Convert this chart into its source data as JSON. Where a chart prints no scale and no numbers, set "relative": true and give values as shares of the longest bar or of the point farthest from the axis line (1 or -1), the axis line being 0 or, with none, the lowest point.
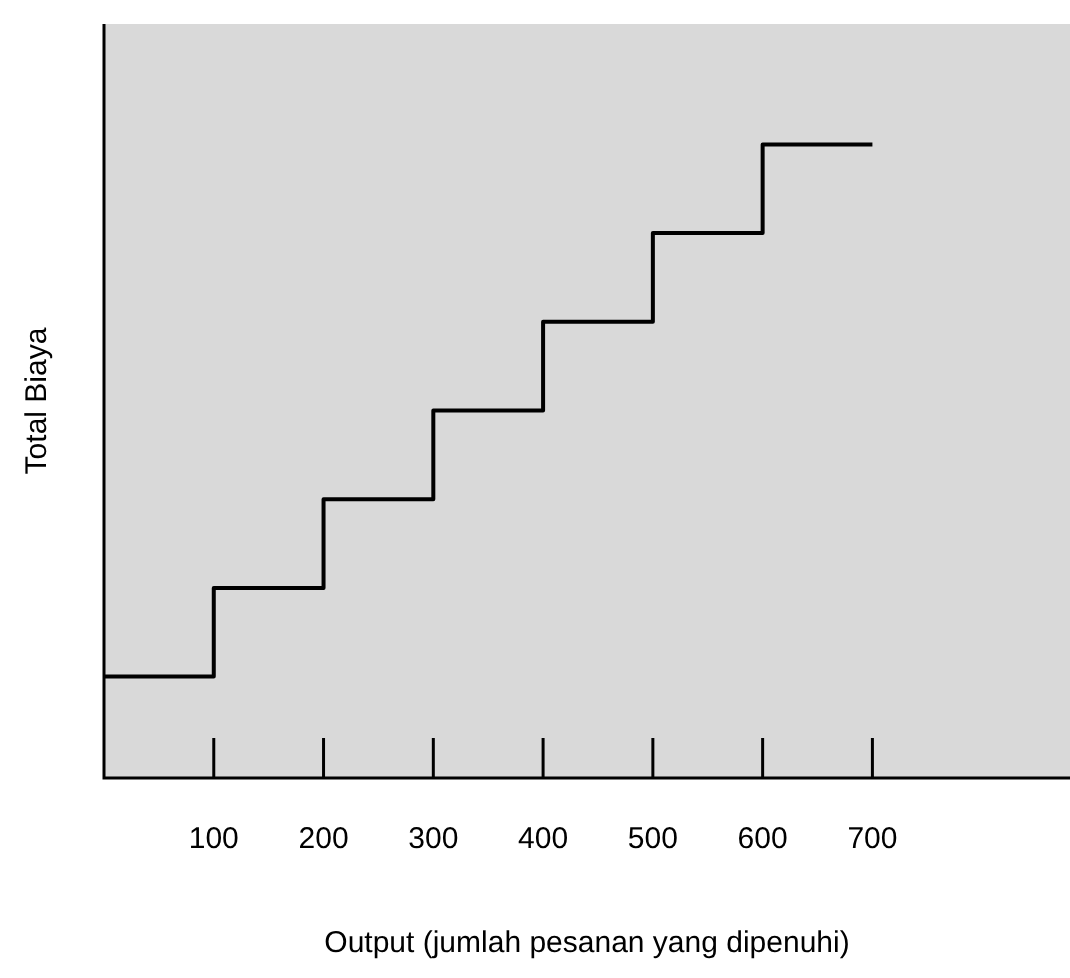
{
  "chart_data": {
    "type": "step",
    "xlabel": "Output (jumlah pesanan yang dipenuhi)",
    "ylabel": "Total Biaya",
    "relative": true,
    "x": [
      0,
      100,
      200,
      300,
      400,
      500,
      600,
      700
    ],
    "xlim": [
      0,
      880
    ],
    "xticks": [
      100,
      200,
      300,
      400,
      500,
      600,
      700
    ],
    "series": [
      {
        "color": "#000000",
        "values": [
          0.16,
          0.3,
          0.44,
          0.58,
          0.72,
          0.86,
          1,
          1
        ]
      }
    ],
    "grid": false,
    "legend": false,
    "marker": "none",
    "line_style": "solid"
  }
}
